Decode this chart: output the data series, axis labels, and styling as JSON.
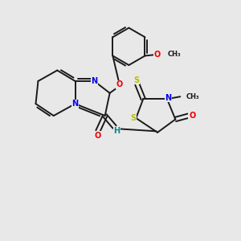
{
  "bg_color": "#e8e8e8",
  "fig_size": [
    3.0,
    3.0
  ],
  "dpi": 100,
  "bond_color": "#1a1a1a",
  "bond_lw": 1.4,
  "atom_colors": {
    "N": "#0000ee",
    "O": "#ee0000",
    "S": "#bbbb00",
    "H": "#008888",
    "C": "#1a1a1a"
  },
  "font_size": 7.0,
  "small_font": 6.0
}
